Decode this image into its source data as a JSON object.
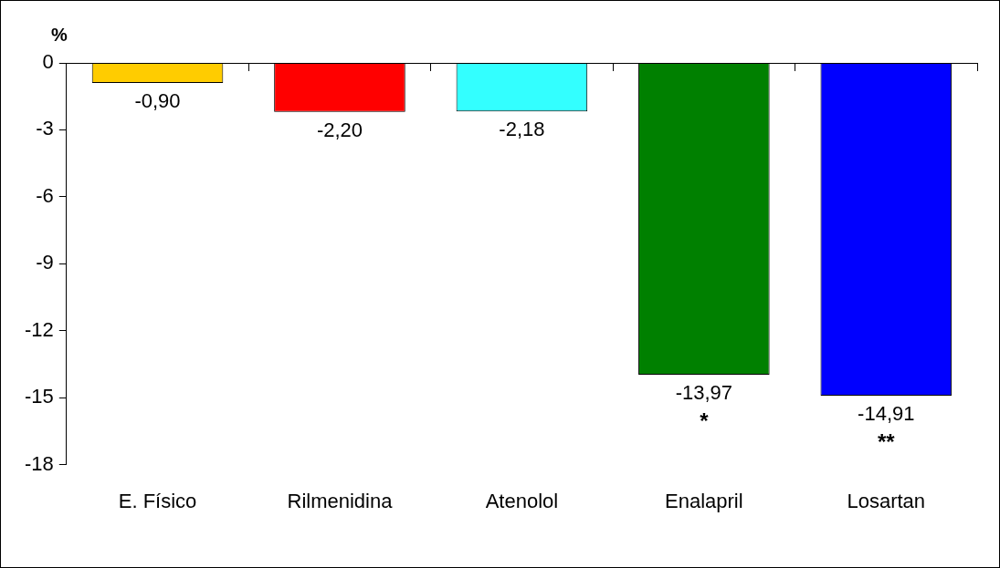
{
  "chart_data": {
    "type": "bar",
    "ylabel": "%",
    "categories": [
      "E. Físico",
      "Rilmenidina",
      "Atenolol",
      "Enalapril",
      "Losartan"
    ],
    "values": [
      -0.9,
      -2.2,
      -2.18,
      -13.97,
      -14.91
    ],
    "colors": [
      "#ffcc00",
      "#ff0000",
      "#33ffff",
      "#008000",
      "#0000ff"
    ],
    "value_labels": [
      "-0,90",
      "-2,20",
      "-2,18",
      "-13,97",
      "-14,91"
    ],
    "ylim": [
      -18,
      0
    ],
    "yticks": [
      0,
      -3,
      -6,
      -9,
      -12,
      -15,
      -18
    ],
    "grid": false,
    "legend": false,
    "annotations": [
      {
        "text": "*",
        "x": "Enalapril",
        "y": -13.97
      },
      {
        "text": "**",
        "x": "Losartan",
        "y": -14.91
      }
    ]
  }
}
